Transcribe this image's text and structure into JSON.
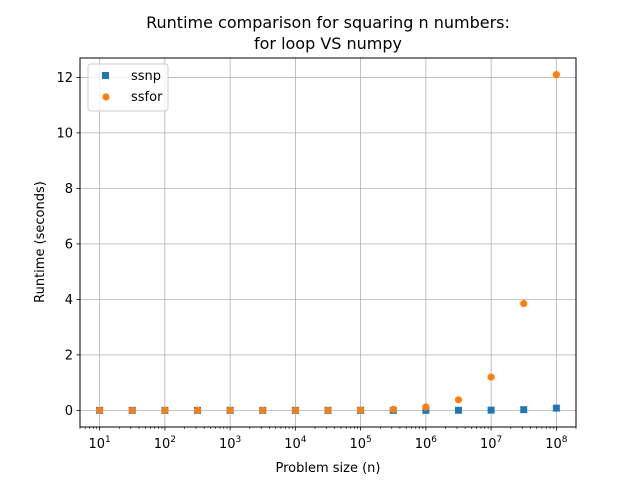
{
  "chart_data": {
    "type": "scatter",
    "title": [
      "Runtime comparison for squaring n numbers:",
      "for loop VS numpy"
    ],
    "xlabel": "Problem size (n)",
    "ylabel": "Runtime (seconds)",
    "x_scale": "log",
    "xlim": [
      5,
      200000000
    ],
    "ylim": [
      -0.6,
      12.7
    ],
    "grid": true,
    "legend_position": "top-left",
    "x_ticks": [
      {
        "base": "10",
        "exp": "1",
        "value": 10
      },
      {
        "base": "10",
        "exp": "2",
        "value": 100
      },
      {
        "base": "10",
        "exp": "3",
        "value": 1000
      },
      {
        "base": "10",
        "exp": "4",
        "value": 10000
      },
      {
        "base": "10",
        "exp": "5",
        "value": 100000
      },
      {
        "base": "10",
        "exp": "6",
        "value": 1000000
      },
      {
        "base": "10",
        "exp": "7",
        "value": 10000000
      },
      {
        "base": "10",
        "exp": "8",
        "value": 100000000
      }
    ],
    "y_ticks": [
      {
        "label": "0",
        "value": 0
      },
      {
        "label": "2",
        "value": 2
      },
      {
        "label": "4",
        "value": 4
      },
      {
        "label": "6",
        "value": 6
      },
      {
        "label": "8",
        "value": 8
      },
      {
        "label": "10",
        "value": 10
      },
      {
        "label": "12",
        "value": 12
      }
    ],
    "series": [
      {
        "name": "ssnp",
        "marker": "square",
        "color": "#1f77b4",
        "x": [
          10,
          31.6,
          100,
          316,
          1000,
          3162,
          10000,
          31623,
          100000,
          316228,
          1000000,
          3162278,
          10000000,
          31622777,
          100000000
        ],
        "y": [
          0,
          0,
          0,
          0,
          0,
          0,
          0,
          0,
          0,
          0,
          0,
          0.003,
          0.008,
          0.025,
          0.08
        ]
      },
      {
        "name": "ssfor",
        "marker": "circle",
        "color": "#ff7f0e",
        "x": [
          10,
          31.6,
          100,
          316,
          1000,
          3162,
          10000,
          31623,
          100000,
          316228,
          1000000,
          3162278,
          10000000,
          31622777,
          100000000
        ],
        "y": [
          0,
          0,
          0,
          0,
          0,
          0,
          0,
          0.002,
          0.01,
          0.035,
          0.12,
          0.38,
          1.2,
          3.85,
          12.1
        ]
      }
    ]
  }
}
